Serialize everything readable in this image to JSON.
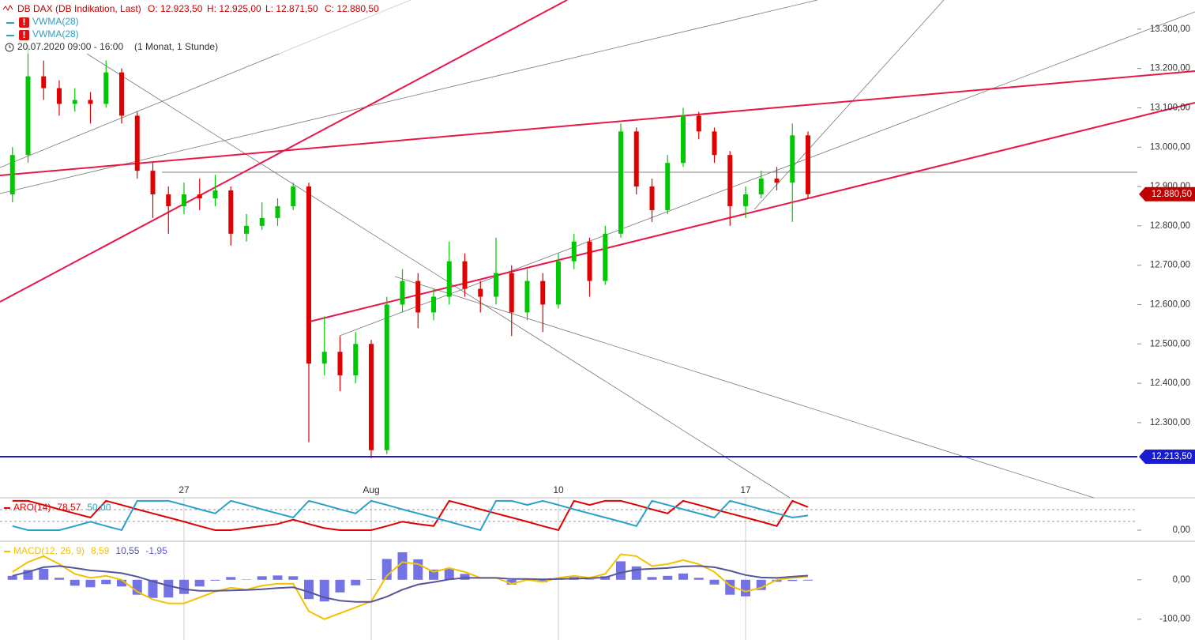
{
  "chart_data": [
    {
      "type": "candlestick",
      "title": "DB DAX (DB Indikation, Last)",
      "stats": [
        "O: 12.923,50",
        "H: 12.925,00",
        "L: 12.871,50",
        "C: 12.880,50"
      ],
      "legend": [
        "VWMA(28)",
        "VWMA(28)"
      ],
      "period": "20.07.2020 09:00 - 16:00",
      "interval": "(1 Monat, 1 Stunde)",
      "categories": [
        null,
        null,
        null,
        null,
        null,
        null,
        null,
        null,
        null,
        null,
        null,
        "27",
        null,
        null,
        null,
        null,
        null,
        null,
        null,
        null,
        null,
        null,
        null,
        "Aug",
        null,
        null,
        null,
        null,
        null,
        null,
        null,
        null,
        null,
        null,
        null,
        "10",
        null,
        null,
        null,
        null,
        null,
        null,
        null,
        null,
        null,
        null,
        null,
        "17",
        null,
        null,
        null,
        null
      ],
      "open": [
        12880,
        12980,
        13180,
        13150,
        13110,
        13120,
        13110,
        13190,
        13080,
        12940,
        12880,
        12850,
        12880,
        12870,
        12890,
        12780,
        12800,
        12820,
        12850,
        12900,
        12450,
        12480,
        12420,
        12500,
        12230,
        12600,
        12660,
        12580,
        12620,
        12710,
        12640,
        12620,
        12680,
        12580,
        12660,
        12600,
        12710,
        12760,
        12660,
        12780,
        13040,
        12900,
        12840,
        12960,
        13080,
        13040,
        12980,
        12850,
        12880,
        12920,
        12910,
        13030
      ],
      "high": [
        13000,
        13260,
        13220,
        13170,
        13150,
        13140,
        13220,
        13200,
        13090,
        12960,
        12900,
        12910,
        12920,
        12930,
        12900,
        12830,
        12860,
        12870,
        12910,
        12910,
        12570,
        12520,
        12530,
        12510,
        12620,
        12690,
        12680,
        12640,
        12760,
        12730,
        12660,
        12770,
        12700,
        12690,
        12680,
        12730,
        12780,
        12770,
        12800,
        13060,
        13050,
        12920,
        12980,
        13100,
        13090,
        13050,
        12990,
        12900,
        12940,
        12950,
        13060,
        13040
      ],
      "low": [
        12860,
        12960,
        13120,
        13080,
        13090,
        13060,
        13100,
        13060,
        12920,
        12820,
        12780,
        12830,
        12840,
        12850,
        12750,
        12760,
        12790,
        12800,
        12840,
        12250,
        12420,
        12380,
        12400,
        12210,
        12220,
        12580,
        12540,
        12560,
        12600,
        12620,
        12580,
        12600,
        12520,
        12560,
        12530,
        12590,
        12690,
        12620,
        12650,
        12770,
        12880,
        12810,
        12830,
        12950,
        13020,
        12960,
        12800,
        12820,
        12870,
        12890,
        12810,
        12870
      ],
      "close": [
        12980,
        13180,
        13150,
        13110,
        13120,
        13110,
        13190,
        13080,
        12940,
        12880,
        12850,
        12880,
        12870,
        12890,
        12780,
        12800,
        12820,
        12850,
        12900,
        12450,
        12480,
        12420,
        12500,
        12230,
        12600,
        12660,
        12580,
        12620,
        12710,
        12640,
        12620,
        12680,
        12580,
        12660,
        12600,
        12710,
        12760,
        12660,
        12780,
        13040,
        12900,
        12840,
        12960,
        13080,
        13040,
        12980,
        12850,
        12880,
        12920,
        12910,
        13030,
        12880.5
      ],
      "up_color": "#00c800",
      "down_color": "#e00000",
      "ylim": [
        12109,
        13374
      ],
      "yticks": [
        {
          "value": 12300,
          "label": "12.300,00"
        },
        {
          "value": 12400,
          "label": "12.400,00"
        },
        {
          "value": 12500,
          "label": "12.500,00"
        },
        {
          "value": 12600,
          "label": "12.600,00"
        },
        {
          "value": 12700,
          "label": "12.700,00"
        },
        {
          "value": 12800,
          "label": "12.800,00"
        },
        {
          "value": 12900,
          "label": "12.900,00"
        },
        {
          "value": 13000,
          "label": "13.000,00"
        },
        {
          "value": 13100,
          "label": "13.100,00"
        },
        {
          "value": 13200,
          "label": "13.200,00"
        },
        {
          "value": 13300,
          "label": "13.300,00"
        }
      ],
      "markers": [
        {
          "value": 12880.5,
          "label": "12.880,50",
          "color": "#c00000",
          "line": false
        },
        {
          "value": 12213.5,
          "label": "12.213,50",
          "color": "#1a1ad0",
          "line": true
        }
      ]
    },
    {
      "type": "line",
      "label": "ARO(14)",
      "series": [
        {
          "color": "#e00000",
          "values": [
            100,
            100,
            86,
            71,
            57,
            43,
            100,
            86,
            71,
            57,
            43,
            29,
            14,
            0,
            0,
            7,
            14,
            21,
            36,
            21,
            7,
            0,
            0,
            0,
            14,
            29,
            21,
            14,
            100,
            86,
            71,
            57,
            43,
            29,
            14,
            0,
            100,
            86,
            100,
            100,
            86,
            71,
            57,
            100,
            86,
            71,
            57,
            43,
            29,
            14,
            100,
            78.57
          ],
          "value_label": "78,57"
        },
        {
          "color": "#2aa0c8",
          "values": [
            14,
            0,
            0,
            0,
            14,
            29,
            14,
            0,
            100,
            100,
            100,
            86,
            71,
            57,
            100,
            86,
            71,
            57,
            43,
            100,
            86,
            71,
            57,
            100,
            86,
            71,
            57,
            43,
            29,
            14,
            0,
            100,
            100,
            86,
            100,
            86,
            71,
            57,
            43,
            29,
            14,
            100,
            86,
            71,
            57,
            43,
            100,
            86,
            71,
            57,
            43,
            50
          ],
          "value_label": "50,00"
        }
      ],
      "ylim": [
        -35,
        105
      ],
      "yticks": [
        {
          "value": 0,
          "label": "0,00"
        }
      ],
      "levels": [
        30,
        70
      ]
    },
    {
      "type": "macd",
      "label": "MACD(12, 26, 9)",
      "series": [
        {
          "kind": "line",
          "color": "#f2c200",
          "values": [
            20,
            45,
            60,
            40,
            15,
            5,
            10,
            0,
            -30,
            -50,
            -60,
            -60,
            -45,
            -30,
            -20,
            -25,
            -15,
            -10,
            -10,
            -80,
            -100,
            -85,
            -70,
            -55,
            10,
            45,
            40,
            20,
            30,
            20,
            5,
            5,
            -10,
            0,
            -5,
            5,
            10,
            5,
            15,
            65,
            60,
            35,
            40,
            50,
            40,
            20,
            -15,
            -30,
            -20,
            0,
            5,
            8.59
          ],
          "value_label": "8,59"
        },
        {
          "kind": "line",
          "color": "#55559a",
          "values": [
            10,
            20,
            32,
            35,
            30,
            24,
            21,
            17,
            8,
            -4,
            -15,
            -24,
            -28,
            -28,
            -27,
            -26,
            -24,
            -21,
            -19,
            -31,
            -45,
            -53,
            -56,
            -56,
            -43,
            -25,
            -12,
            -6,
            1,
            5,
            5,
            5,
            2,
            2,
            1,
            2,
            3,
            4,
            6,
            18,
            26,
            28,
            30,
            34,
            35,
            32,
            23,
            12,
            6,
            5,
            8,
            10.55
          ],
          "value_label": "10,55"
        },
        {
          "kind": "bar",
          "color": "#5a5ae0",
          "values": [
            10,
            25,
            28,
            5,
            -15,
            -19,
            -11,
            -17,
            -38,
            -46,
            -45,
            -36,
            -17,
            -2,
            7,
            1,
            9,
            11,
            9,
            -49,
            -55,
            -32,
            -14,
            1,
            53,
            70,
            52,
            26,
            29,
            15,
            0,
            0,
            -12,
            -2,
            -6,
            3,
            7,
            1,
            9,
            47,
            34,
            7,
            10,
            16,
            5,
            -12,
            -38,
            -42,
            -26,
            -5,
            -3,
            -1.95
          ],
          "value_label": "-1,95"
        }
      ],
      "ylim": [
        -153,
        96
      ],
      "yticks": [
        {
          "value": -100,
          "label": "-100,00"
        },
        {
          "value": 0,
          "label": "0,00"
        }
      ]
    }
  ]
}
